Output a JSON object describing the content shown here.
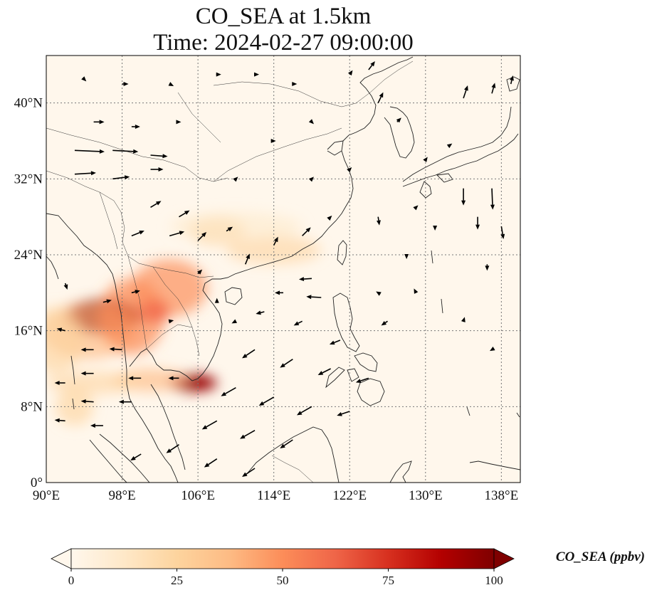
{
  "title": {
    "line1": "CO_SEA at 1.5km",
    "line2": "Time: 2024-02-27 09:00:00"
  },
  "map": {
    "lon_range": [
      90,
      140
    ],
    "lat_range": [
      0,
      45
    ],
    "x_ticks": [
      {
        "value": 90,
        "label": "90°E"
      },
      {
        "value": 98,
        "label": "98°E"
      },
      {
        "value": 106,
        "label": "106°E"
      },
      {
        "value": 114,
        "label": "114°E"
      },
      {
        "value": 122,
        "label": "122°E"
      },
      {
        "value": 130,
        "label": "130°E"
      },
      {
        "value": 138,
        "label": "138°E"
      }
    ],
    "y_ticks": [
      {
        "value": 0,
        "label": "0°"
      },
      {
        "value": 8,
        "label": "8°N"
      },
      {
        "value": 16,
        "label": "16°N"
      },
      {
        "value": 24,
        "label": "24°N"
      },
      {
        "value": 32,
        "label": "32°N"
      },
      {
        "value": 40,
        "label": "40°N"
      }
    ],
    "gridlines": true,
    "background_color": "#fff7ec",
    "coastline_color": "#222222",
    "arrow_color": "#000000",
    "plumes": [
      {
        "lon": 96,
        "lat": 17.5,
        "rx": 4,
        "ry": 1.8,
        "level": 0.9,
        "color": "#7f0000"
      },
      {
        "lon": 94.5,
        "lat": 16,
        "rx": 5,
        "ry": 3,
        "level": 0.35,
        "color": "#fdbb84"
      },
      {
        "lon": 91,
        "lat": 15,
        "rx": 3,
        "ry": 3.5,
        "level": 0.3,
        "color": "#fdd49e"
      },
      {
        "lon": 99,
        "lat": 17.5,
        "rx": 3.5,
        "ry": 4,
        "level": 0.45,
        "color": "#fc8d59"
      },
      {
        "lon": 103,
        "lat": 20.5,
        "rx": 4,
        "ry": 3,
        "level": 0.4,
        "color": "#fc8d59"
      },
      {
        "lon": 101.5,
        "lat": 18,
        "rx": 1.5,
        "ry": 1.2,
        "level": 0.55,
        "color": "#ef6548"
      },
      {
        "lon": 105.5,
        "lat": 10.5,
        "rx": 2.5,
        "ry": 0.9,
        "level": 0.95,
        "color": "#990000"
      },
      {
        "lon": 101,
        "lat": 10.8,
        "rx": 4,
        "ry": 1.2,
        "level": 0.35,
        "color": "#fdbb84"
      },
      {
        "lon": 95,
        "lat": 10.5,
        "rx": 5,
        "ry": 1.2,
        "level": 0.25,
        "color": "#fdd49e"
      },
      {
        "lon": 108,
        "lat": 26.5,
        "rx": 3,
        "ry": 1.5,
        "level": 0.3,
        "color": "#fdd49e"
      },
      {
        "lon": 114,
        "lat": 24.5,
        "rx": 5,
        "ry": 1.5,
        "level": 0.25,
        "color": "#fdd49e"
      },
      {
        "lon": 110,
        "lat": 27,
        "rx": 7,
        "ry": 1.5,
        "level": 0.15,
        "color": "#fee8c8"
      },
      {
        "lon": 93,
        "lat": 8,
        "rx": 2,
        "ry": 2,
        "level": 0.3,
        "color": "#fdd49e"
      }
    ],
    "wind_vectors": [
      {
        "lon": 93,
        "lat": 35,
        "u": 7,
        "v": -0.3
      },
      {
        "lon": 97,
        "lat": 35,
        "u": 6,
        "v": -0.3
      },
      {
        "lon": 101,
        "lat": 34.5,
        "u": 4,
        "v": -0.3
      },
      {
        "lon": 93,
        "lat": 32.5,
        "u": 5,
        "v": 0.3
      },
      {
        "lon": 97,
        "lat": 32,
        "u": 4,
        "v": 0.5
      },
      {
        "lon": 101,
        "lat": 33,
        "u": 3,
        "v": 0
      },
      {
        "lon": 95,
        "lat": 38,
        "u": 2.5,
        "v": 0
      },
      {
        "lon": 99,
        "lat": 37.5,
        "u": 2,
        "v": 0
      },
      {
        "lon": 104,
        "lat": 38,
        "u": 0.5,
        "v": 0
      },
      {
        "lon": 101,
        "lat": 29,
        "u": 2.5,
        "v": 1.5
      },
      {
        "lon": 104,
        "lat": 28,
        "u": 2.5,
        "v": 1.5
      },
      {
        "lon": 99,
        "lat": 26,
        "u": 3,
        "v": 1.2
      },
      {
        "lon": 103,
        "lat": 26,
        "u": 3.5,
        "v": 1
      },
      {
        "lon": 106,
        "lat": 25.5,
        "u": 2,
        "v": 2
      },
      {
        "lon": 109,
        "lat": 26.5,
        "u": 1.5,
        "v": 1
      },
      {
        "lon": 111,
        "lat": 23,
        "u": 1,
        "v": 2.5
      },
      {
        "lon": 114,
        "lat": 25,
        "u": 1,
        "v": 2
      },
      {
        "lon": 117,
        "lat": 26,
        "u": 2,
        "v": 2
      },
      {
        "lon": 118,
        "lat": 21.5,
        "u": -3,
        "v": -0.2
      },
      {
        "lon": 115,
        "lat": 20,
        "u": -2,
        "v": 0
      },
      {
        "lon": 119,
        "lat": 19.5,
        "u": -3.5,
        "v": 0.2
      },
      {
        "lon": 113,
        "lat": 18,
        "u": -2,
        "v": -0.5
      },
      {
        "lon": 117,
        "lat": 17,
        "u": -2,
        "v": -1
      },
      {
        "lon": 121,
        "lat": 15,
        "u": -2.5,
        "v": -1
      },
      {
        "lon": 126,
        "lat": 17,
        "u": -1.5,
        "v": -1
      },
      {
        "lon": 129,
        "lat": 20,
        "u": -0.5,
        "v": 1
      },
      {
        "lon": 112,
        "lat": 14,
        "u": -3,
        "v": -2
      },
      {
        "lon": 116,
        "lat": 13,
        "u": -3,
        "v": -2
      },
      {
        "lon": 120,
        "lat": 12,
        "u": -3,
        "v": -1.5
      },
      {
        "lon": 124,
        "lat": 11,
        "u": -3,
        "v": -1
      },
      {
        "lon": 110,
        "lat": 10,
        "u": -3.5,
        "v": -2
      },
      {
        "lon": 114,
        "lat": 9,
        "u": -3.5,
        "v": -2
      },
      {
        "lon": 118,
        "lat": 8,
        "u": -3.5,
        "v": -2
      },
      {
        "lon": 122,
        "lat": 7.5,
        "u": -3,
        "v": -1
      },
      {
        "lon": 108,
        "lat": 6.5,
        "u": -3.5,
        "v": -2
      },
      {
        "lon": 112,
        "lat": 5.5,
        "u": -3.5,
        "v": -2
      },
      {
        "lon": 116,
        "lat": 4.5,
        "u": -3,
        "v": -2
      },
      {
        "lon": 104,
        "lat": 4,
        "u": -3,
        "v": -2
      },
      {
        "lon": 108,
        "lat": 2.5,
        "u": -3,
        "v": -2
      },
      {
        "lon": 112,
        "lat": 1.5,
        "u": -3,
        "v": -2
      },
      {
        "lon": 100,
        "lat": 3,
        "u": -2.5,
        "v": -1.5
      },
      {
        "lon": 96,
        "lat": 6,
        "u": -3,
        "v": 0
      },
      {
        "lon": 92,
        "lat": 6.5,
        "u": -2.5,
        "v": 0.2
      },
      {
        "lon": 95,
        "lat": 8.5,
        "u": -3,
        "v": 0.2
      },
      {
        "lon": 99,
        "lat": 8.5,
        "u": -3,
        "v": 0
      },
      {
        "lon": 100,
        "lat": 11,
        "u": -3,
        "v": 0
      },
      {
        "lon": 104,
        "lat": 11,
        "u": -2.5,
        "v": 0
      },
      {
        "lon": 95,
        "lat": 11.5,
        "u": -3,
        "v": 0
      },
      {
        "lon": 92,
        "lat": 10.5,
        "u": -2.5,
        "v": 0
      },
      {
        "lon": 95,
        "lat": 14,
        "u": -3,
        "v": 0
      },
      {
        "lon": 98,
        "lat": 14,
        "u": -3,
        "v": 0.2
      },
      {
        "lon": 92,
        "lat": 16,
        "u": -2,
        "v": 0.5
      },
      {
        "lon": 96,
        "lat": 19,
        "u": 2,
        "v": 0.5
      },
      {
        "lon": 99,
        "lat": 20,
        "u": 2,
        "v": 0.5
      },
      {
        "lon": 103,
        "lat": 17,
        "u": 1,
        "v": 0.2
      },
      {
        "lon": 106,
        "lat": 22,
        "u": 1,
        "v": 1
      },
      {
        "lon": 92,
        "lat": 21,
        "u": 0.5,
        "v": -1.5
      },
      {
        "lon": 108,
        "lat": 19,
        "u": 0,
        "v": 1
      },
      {
        "lon": 110,
        "lat": 17,
        "u": -1,
        "v": -0.5
      },
      {
        "lon": 125,
        "lat": 28,
        "u": 0.3,
        "v": -2
      },
      {
        "lon": 128,
        "lat": 24,
        "u": 0,
        "v": -1
      },
      {
        "lon": 131,
        "lat": 27,
        "u": 0,
        "v": -1
      },
      {
        "lon": 134,
        "lat": 31,
        "u": 0,
        "v": -4
      },
      {
        "lon": 135.5,
        "lat": 28,
        "u": 0,
        "v": -3
      },
      {
        "lon": 137,
        "lat": 31,
        "u": 0.2,
        "v": -5
      },
      {
        "lon": 138,
        "lat": 27,
        "u": 0.5,
        "v": -3
      },
      {
        "lon": 136.5,
        "lat": 23,
        "u": 0,
        "v": -1.5
      },
      {
        "lon": 134,
        "lat": 17,
        "u": 0.3,
        "v": 1
      },
      {
        "lon": 137,
        "lat": 14,
        "u": -0.5,
        "v": -0.3
      },
      {
        "lon": 130,
        "lat": 34,
        "u": 0.5,
        "v": 0.7
      },
      {
        "lon": 132.5,
        "lat": 35.5,
        "u": 0.7,
        "v": 0.5
      },
      {
        "lon": 134,
        "lat": 40.5,
        "u": 1,
        "v": 3
      },
      {
        "lon": 137,
        "lat": 41,
        "u": 0.7,
        "v": 2.5
      },
      {
        "lon": 139,
        "lat": 42,
        "u": 0.5,
        "v": 2
      },
      {
        "lon": 124,
        "lat": 43.5,
        "u": 1.5,
        "v": 2
      },
      {
        "lon": 122,
        "lat": 43,
        "u": 0.7,
        "v": 1
      },
      {
        "lon": 125,
        "lat": 40,
        "u": 1.2,
        "v": 2.5
      },
      {
        "lon": 127,
        "lat": 38,
        "u": 1,
        "v": 1
      },
      {
        "lon": 116,
        "lat": 42,
        "u": 1,
        "v": 0
      },
      {
        "lon": 112,
        "lat": 43,
        "u": 1,
        "v": 0
      },
      {
        "lon": 108,
        "lat": 43,
        "u": 1,
        "v": 0
      },
      {
        "lon": 103,
        "lat": 42,
        "u": 1,
        "v": -0.5
      },
      {
        "lon": 98,
        "lat": 42,
        "u": 1.5,
        "v": 0
      },
      {
        "lon": 94,
        "lat": 42.5,
        "u": 0.5,
        "v": -0.5
      },
      {
        "lon": 118,
        "lat": 38,
        "u": 0.5,
        "v": -0.5
      },
      {
        "lon": 114,
        "lat": 36,
        "u": 0.5,
        "v": 0
      },
      {
        "lon": 110,
        "lat": 32,
        "u": 0.5,
        "v": 0.5
      },
      {
        "lon": 118,
        "lat": 32,
        "u": 0.5,
        "v": 0.5
      },
      {
        "lon": 122,
        "lat": 33,
        "u": 0.5,
        "v": 0.5
      },
      {
        "lon": 120,
        "lat": 28,
        "u": 0.3,
        "v": 0.3
      },
      {
        "lon": 129,
        "lat": 29,
        "u": 0.5,
        "v": 0.5
      },
      {
        "lon": 125,
        "lat": 20,
        "u": -0.5,
        "v": 0.3
      }
    ]
  },
  "colorbar": {
    "min": 0,
    "max": 100,
    "ticks": [
      {
        "value": 0,
        "label": "0"
      },
      {
        "value": 25,
        "label": "25"
      },
      {
        "value": 50,
        "label": "50"
      },
      {
        "value": 75,
        "label": "75"
      },
      {
        "value": 100,
        "label": "100"
      }
    ],
    "label": "CO_SEA (ppbv)",
    "extend": "both",
    "colors": [
      "#fff7ec",
      "#fee8c8",
      "#fdd49e",
      "#fdbb84",
      "#fc8d59",
      "#ef6548",
      "#d7301f",
      "#b30000",
      "#7f0000"
    ]
  }
}
